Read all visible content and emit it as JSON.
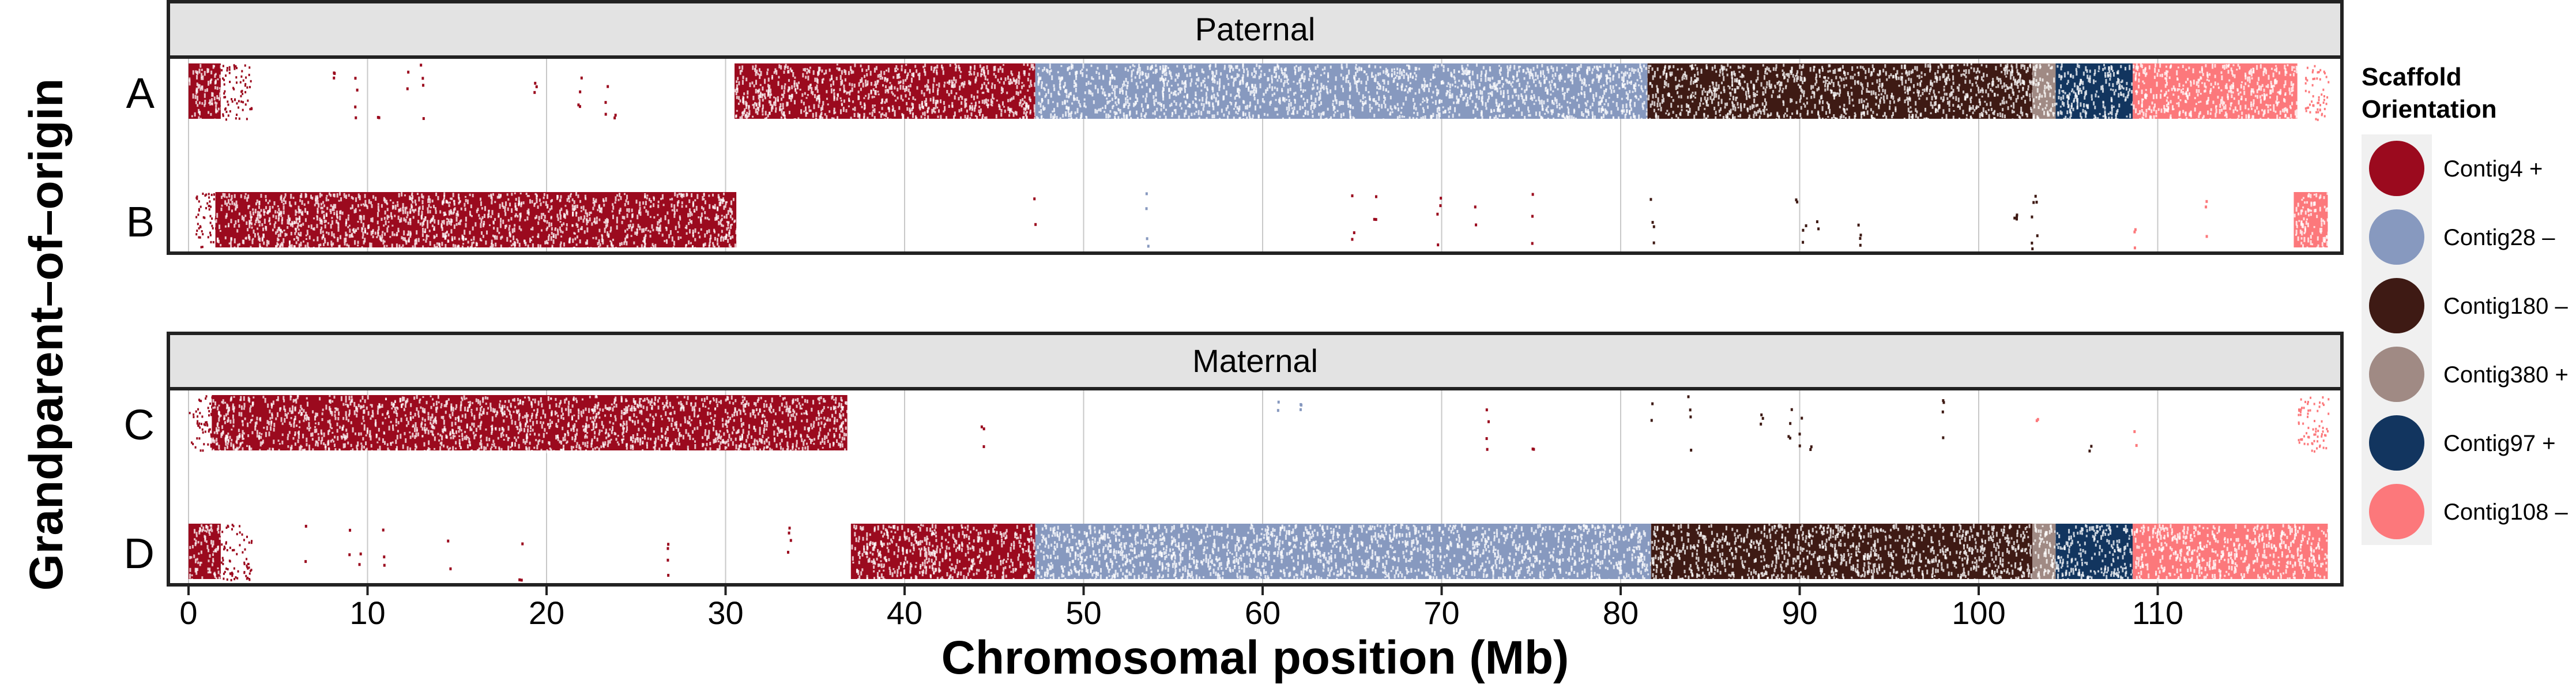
{
  "chart_data": {
    "type": "scatter",
    "xlabel": "Chromosomal position (Mb)",
    "ylabel": "Grandparent–of–origin",
    "xlim": [
      0,
      120
    ],
    "x_ticks": [
      0,
      10,
      20,
      30,
      40,
      50,
      60,
      70,
      80,
      90,
      100,
      110
    ],
    "facets": [
      {
        "title": "Paternal",
        "rows": [
          "A",
          "B"
        ]
      },
      {
        "title": "Maternal",
        "rows": [
          "C",
          "D"
        ]
      }
    ],
    "legend": {
      "title_line1": "Scaffold",
      "title_line2": "Orientation",
      "placement": "right",
      "items": [
        {
          "label": "Contig4 +",
          "color": "#9b0a1e"
        },
        {
          "label": "Contig28 –",
          "color": "#8799bf"
        },
        {
          "label": "Contig180 –",
          "color": "#3e1a14"
        },
        {
          "label": "Contig380 +",
          "color": "#a08a84"
        },
        {
          "label": "Contig97 +",
          "color": "#12355f"
        },
        {
          "label": "Contig108 –",
          "color": "#fc787b"
        }
      ]
    },
    "series": [
      {
        "row": "A",
        "segments": [
          {
            "contig": 0,
            "start": 0,
            "end": 1.8,
            "density": 1.0
          },
          {
            "contig": 0,
            "start": 1.8,
            "end": 3.5,
            "density": 0.15
          },
          {
            "contig": 0,
            "start": 30.5,
            "end": 47.3,
            "density": 1.0
          },
          {
            "contig": 1,
            "start": 47.3,
            "end": 81.5,
            "density": 1.0
          },
          {
            "contig": 2,
            "start": 81.5,
            "end": 103.0,
            "density": 1.0
          },
          {
            "contig": 3,
            "start": 103.0,
            "end": 104.3,
            "density": 1.0
          },
          {
            "contig": 4,
            "start": 104.3,
            "end": 108.6,
            "density": 1.0
          },
          {
            "contig": 5,
            "start": 108.6,
            "end": 117.8,
            "density": 1.0
          },
          {
            "contig": 5,
            "start": 118.2,
            "end": 119.5,
            "density": 0.15
          }
        ],
        "scattered": [
          {
            "x": 8.0,
            "contig": 0
          },
          {
            "x": 9.3,
            "contig": 0
          },
          {
            "x": 10.5,
            "contig": 0
          },
          {
            "x": 12.2,
            "contig": 0
          },
          {
            "x": 13.0,
            "contig": 0
          },
          {
            "x": 19.3,
            "contig": 0
          },
          {
            "x": 21.8,
            "contig": 0
          },
          {
            "x": 23.3,
            "contig": 0
          },
          {
            "x": 23.8,
            "contig": 0
          }
        ]
      },
      {
        "row": "B",
        "segments": [
          {
            "contig": 0,
            "start": 0.3,
            "end": 1.5,
            "density": 0.2
          },
          {
            "contig": 0,
            "start": 1.5,
            "end": 30.6,
            "density": 1.0
          },
          {
            "contig": 5,
            "start": 117.6,
            "end": 119.5,
            "density": 1.0
          }
        ],
        "scattered": [
          {
            "x": 47.2,
            "contig": 0
          },
          {
            "x": 53.5,
            "contig": 1
          },
          {
            "x": 65.0,
            "contig": 0
          },
          {
            "x": 66.2,
            "contig": 0
          },
          {
            "x": 69.8,
            "contig": 0
          },
          {
            "x": 71.8,
            "contig": 0
          },
          {
            "x": 75.0,
            "contig": 0
          },
          {
            "x": 81.7,
            "contig": 2
          },
          {
            "x": 89.8,
            "contig": 2
          },
          {
            "x": 90.2,
            "contig": 2
          },
          {
            "x": 91.0,
            "contig": 2
          },
          {
            "x": 93.3,
            "contig": 2
          },
          {
            "x": 102.0,
            "contig": 2
          },
          {
            "x": 103.0,
            "contig": 2
          },
          {
            "x": 103.2,
            "contig": 2
          },
          {
            "x": 108.7,
            "contig": 5
          },
          {
            "x": 112.7,
            "contig": 5
          }
        ]
      },
      {
        "row": "C",
        "segments": [
          {
            "contig": 0,
            "start": 0.0,
            "end": 1.3,
            "density": 0.2
          },
          {
            "contig": 0,
            "start": 1.3,
            "end": 36.8,
            "density": 1.0
          },
          {
            "contig": 5,
            "start": 117.8,
            "end": 119.5,
            "density": 0.2
          }
        ],
        "scattered": [
          {
            "x": 44.3,
            "contig": 0
          },
          {
            "x": 60.8,
            "contig": 1
          },
          {
            "x": 62.0,
            "contig": 1
          },
          {
            "x": 72.5,
            "contig": 0
          },
          {
            "x": 75.0,
            "contig": 0
          },
          {
            "x": 81.7,
            "contig": 2
          },
          {
            "x": 83.8,
            "contig": 2
          },
          {
            "x": 87.8,
            "contig": 2
          },
          {
            "x": 89.4,
            "contig": 2
          },
          {
            "x": 90.0,
            "contig": 2
          },
          {
            "x": 90.6,
            "contig": 2
          },
          {
            "x": 98.0,
            "contig": 2
          },
          {
            "x": 103.2,
            "contig": 5
          },
          {
            "x": 106.2,
            "contig": 2
          },
          {
            "x": 108.7,
            "contig": 5
          }
        ]
      },
      {
        "row": "D",
        "segments": [
          {
            "contig": 0,
            "start": 0.0,
            "end": 1.8,
            "density": 1.0
          },
          {
            "contig": 0,
            "start": 1.8,
            "end": 3.5,
            "density": 0.2
          },
          {
            "contig": 0,
            "start": 37.0,
            "end": 47.3,
            "density": 1.0
          },
          {
            "contig": 1,
            "start": 47.3,
            "end": 81.7,
            "density": 1.0
          },
          {
            "contig": 2,
            "start": 81.7,
            "end": 103.0,
            "density": 1.0
          },
          {
            "contig": 3,
            "start": 103.0,
            "end": 104.3,
            "density": 1.0
          },
          {
            "contig": 4,
            "start": 104.3,
            "end": 108.6,
            "density": 1.0
          },
          {
            "contig": 5,
            "start": 108.6,
            "end": 119.5,
            "density": 1.0
          }
        ],
        "scattered": [
          {
            "x": 6.5,
            "contig": 0
          },
          {
            "x": 9.0,
            "contig": 0
          },
          {
            "x": 9.5,
            "contig": 0
          },
          {
            "x": 10.8,
            "contig": 0
          },
          {
            "x": 14.5,
            "contig": 0
          },
          {
            "x": 18.5,
            "contig": 0
          },
          {
            "x": 26.8,
            "contig": 0
          },
          {
            "x": 33.5,
            "contig": 0
          }
        ]
      }
    ]
  }
}
